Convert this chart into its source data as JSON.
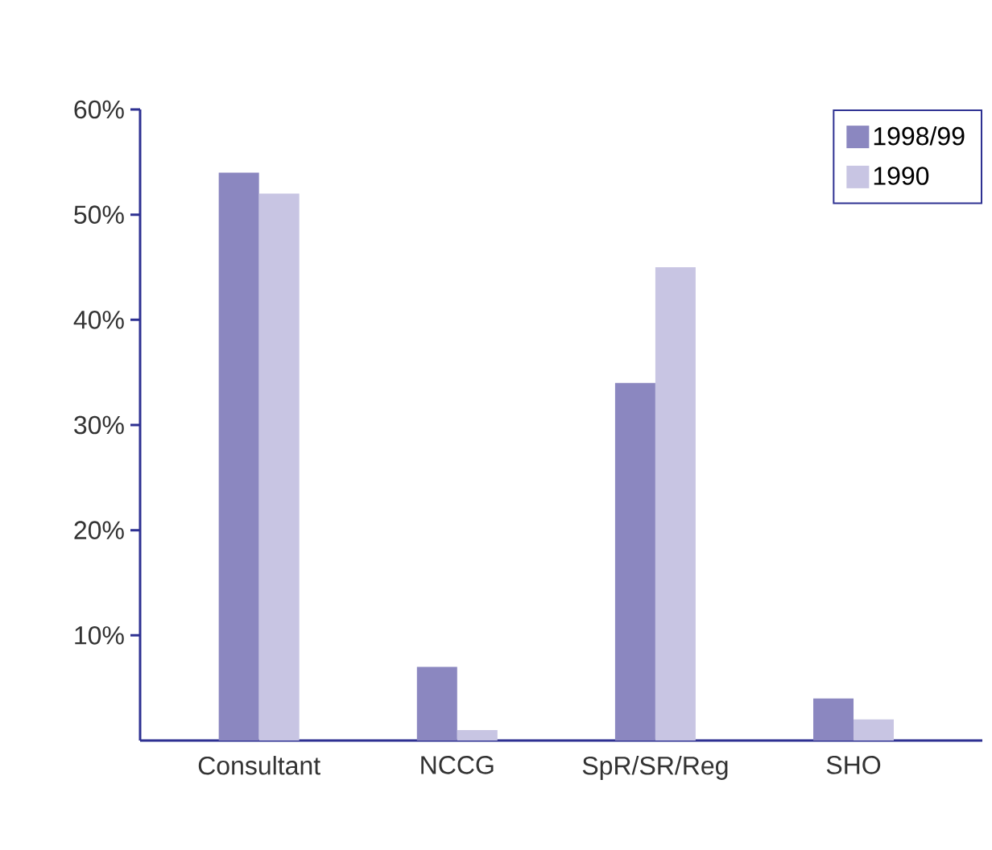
{
  "chart_data": {
    "type": "bar",
    "categories": [
      "Consultant",
      "NCCG",
      "SpR/SR/Reg",
      "SHO"
    ],
    "series": [
      {
        "name": "1998/99",
        "color": "#8b87c0",
        "values": [
          54,
          7,
          34,
          4
        ]
      },
      {
        "name": "1990",
        "color": "#c8c5e3",
        "values": [
          52,
          1,
          45,
          2
        ]
      }
    ],
    "ylim": [
      0,
      60
    ],
    "yticks": [
      {
        "value": 10,
        "label": "10%"
      },
      {
        "value": 20,
        "label": "20%"
      },
      {
        "value": 30,
        "label": "30%"
      },
      {
        "value": 40,
        "label": "40%"
      },
      {
        "value": 50,
        "label": "50%"
      },
      {
        "value": 60,
        "label": "60%"
      }
    ],
    "grid": false,
    "legend": "top right"
  }
}
